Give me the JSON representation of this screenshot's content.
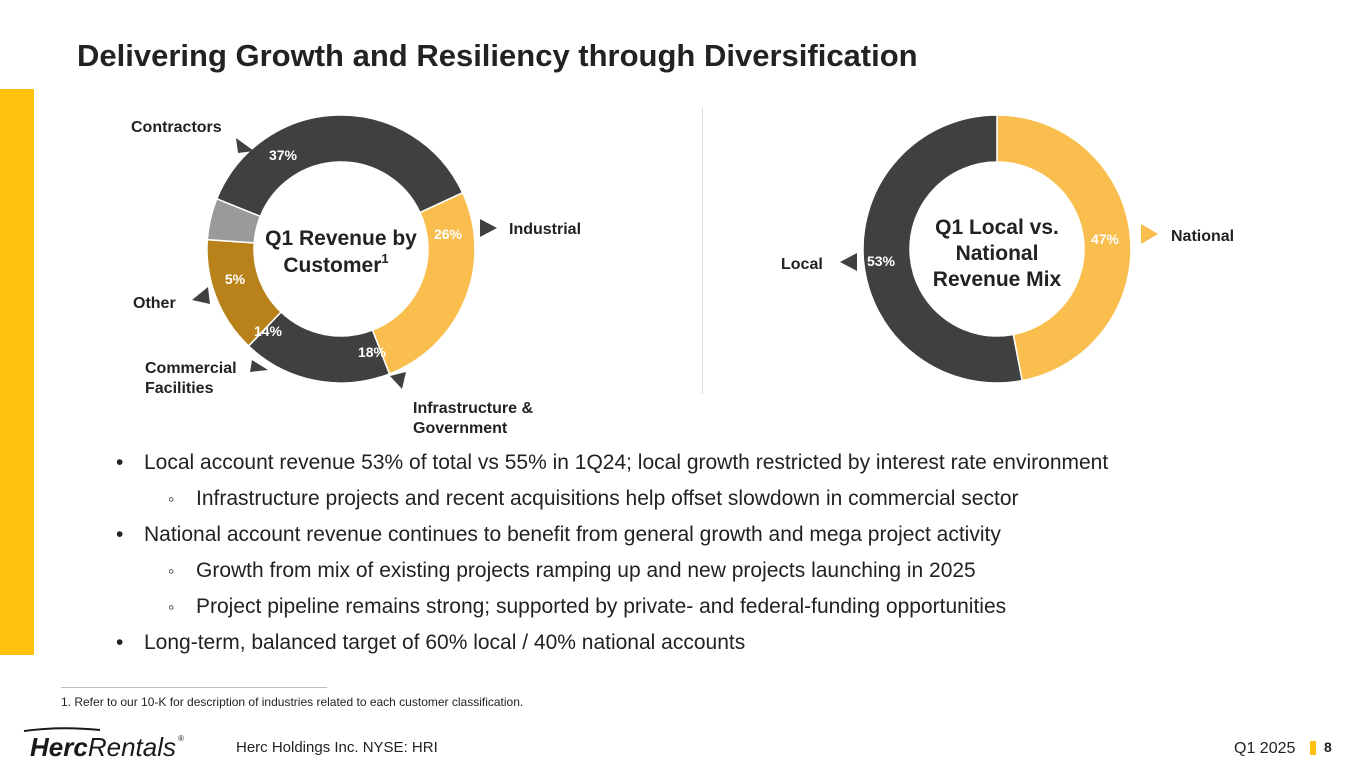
{
  "title": "Delivering Growth and Resiliency through Diversification",
  "colors": {
    "accent": "#FFC20E",
    "dark": "#404040",
    "gold": "#F9BE4E",
    "bronze": "#B8811A",
    "gray": "#9A9A9A",
    "text": "#222222"
  },
  "chart_data": [
    {
      "type": "pie",
      "center_title_line1": "Q1 Revenue by",
      "center_title_line2": "Customer",
      "center_title_sup": "1",
      "slices": [
        {
          "label": "Contractors",
          "value": 37,
          "display": "37%"
        },
        {
          "label": "Industrial",
          "value": 26,
          "display": "26%"
        },
        {
          "label": "Infrastructure &",
          "label2": "Government",
          "value": 18,
          "display": "18%"
        },
        {
          "label": "Commercial",
          "label2": "Facilities",
          "value": 14,
          "display": "14%"
        },
        {
          "label": "Other",
          "value": 5,
          "display": "5%"
        }
      ]
    },
    {
      "type": "pie",
      "center_title_line1": "Q1 Local vs.",
      "center_title_line2": "National",
      "center_title_line3": "Revenue Mix",
      "slices": [
        {
          "label": "National",
          "value": 47,
          "display": "47%"
        },
        {
          "label": "Local",
          "value": 53,
          "display": "53%"
        }
      ]
    }
  ],
  "bullets": [
    {
      "level": 1,
      "text": "Local account revenue 53% of total vs 55% in 1Q24; local growth restricted by interest rate environment"
    },
    {
      "level": 2,
      "text": "Infrastructure projects and recent acquisitions help offset slowdown in commercial sector"
    },
    {
      "level": 1,
      "text": "National account revenue continues to benefit from general growth and mega project activity"
    },
    {
      "level": 2,
      "text": "Growth from mix of existing projects ramping up and new projects launching in 2025"
    },
    {
      "level": 2,
      "text": "Project pipeline remains strong; supported by private- and federal-funding opportunities"
    },
    {
      "level": 1,
      "text": "Long-term, balanced target of 60% local / 40% national accounts"
    }
  ],
  "footnote": "1. Refer to our 10-K for description of industries related to each customer classification.",
  "footer": {
    "logo_text_bold": "Herc",
    "logo_text_light": "Rentals",
    "logo_mark": "®",
    "company": "Herc Holdings Inc.  NYSE: HRI",
    "quarter": "Q1 2025",
    "page": "8"
  }
}
